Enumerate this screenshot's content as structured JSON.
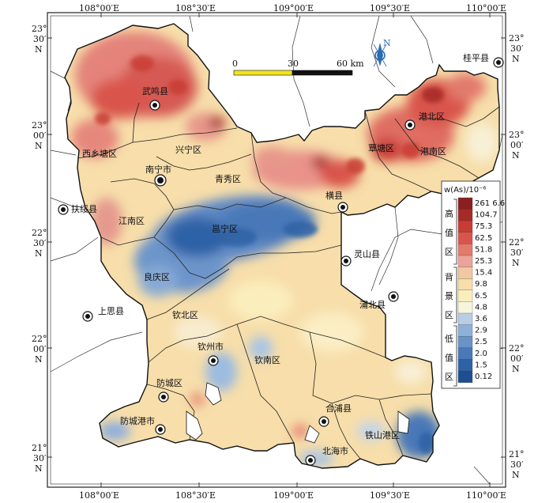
{
  "map": {
    "longitude_labels": [
      "108°00′E",
      "108°30′E",
      "109°00′E",
      "109°30′E",
      "110°00′E"
    ],
    "latitude_labels": [
      {
        "deg": "23°",
        "min": "30′",
        "hem": "N"
      },
      {
        "deg": "23°",
        "min": "00′",
        "hem": "N"
      },
      {
        "deg": "22°",
        "min": "30′",
        "hem": "N"
      },
      {
        "deg": "22°",
        "min": "00′",
        "hem": "N"
      },
      {
        "deg": "21°",
        "min": "30′",
        "hem": "N"
      }
    ],
    "north_arrow": {
      "label": "N",
      "icon": "north-arrow-icon"
    },
    "scale_bar": {
      "ticks": [
        "0",
        "30",
        "60 km"
      ],
      "colors": [
        "#f0e41e",
        "#111111"
      ]
    },
    "places": [
      "武鸣县",
      "西乡塘区",
      "兴宁区",
      "南宁市",
      "青秀区",
      "扶绥县",
      "江南区",
      "邕宁区",
      "良庆区",
      "上思县",
      "钦北区",
      "钦州市",
      "钦南区",
      "防城区",
      "防城港市",
      "合浦县",
      "铁山港区",
      "北海市",
      "横县",
      "灵山县",
      "浦北县",
      "桂平县",
      "港北区",
      "覃塘区",
      "港南区"
    ],
    "legend": {
      "title": "w(As)/10⁻⁶",
      "values": [
        "261 6.6",
        "104.7",
        "75.3",
        "62.5",
        "51.8",
        "25.3",
        "15.4",
        "9.8",
        "6.5",
        "4.8",
        "3.6",
        "2.9",
        "2.5",
        "2.0",
        "1.5",
        "0.12"
      ],
      "colors": [
        "#8b1e1f",
        "#a52a28",
        "#c83c34",
        "#d9554b",
        "#e37a6b",
        "#eba39a",
        "#f2c7a1",
        "#f8dea8",
        "#fbeebd",
        "#f7f5dc",
        "#b9cde6",
        "#8fb0d9",
        "#6a93c8",
        "#4a78b8",
        "#2e62a6",
        "#1d4e92"
      ],
      "classes": [
        {
          "name": "high-value-zone",
          "chars": [
            "高",
            "值",
            "区"
          ]
        },
        {
          "name": "background-zone",
          "chars": [
            "背",
            "景",
            "区"
          ]
        },
        {
          "name": "low-value-zone",
          "chars": [
            "低",
            "值",
            "区"
          ]
        }
      ]
    },
    "colors": {
      "high": "#d9554b",
      "background": "#f8dea8",
      "low": "#4a78b8",
      "outside": "#ffffff"
    }
  }
}
